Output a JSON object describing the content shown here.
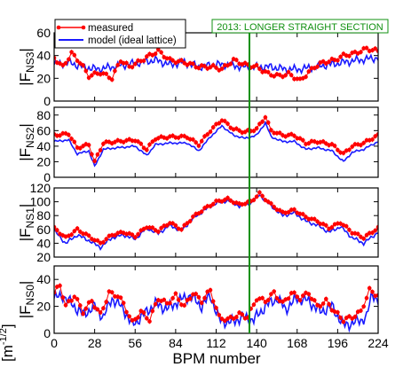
{
  "chart_data": {
    "type": "line",
    "xlabel": "BPM number",
    "xlim": [
      0,
      224
    ],
    "x_ticks": [
      "0",
      "28",
      "56",
      "84",
      "112",
      "140",
      "168",
      "196",
      "224"
    ],
    "x_tick_values": [
      0,
      28,
      56,
      84,
      112,
      140,
      168,
      196,
      224
    ],
    "y_unit_label": "[m⁻¹ᐟ²]",
    "y_unit_parts": {
      "prefix": "[m",
      "sup": "-1/2",
      "suffix": "]"
    },
    "legend": [
      {
        "name": "measured",
        "color": "#ff0000",
        "marker": "circle"
      },
      {
        "name": "model (ideal lattice)",
        "color": "#1a1aff",
        "marker": "none"
      }
    ],
    "annotation": {
      "text": "2013: LONGER STRAIGHT SECTION",
      "x": 135,
      "color": "#109010"
    },
    "colors": {
      "measured": "#ff0000",
      "model": "#1a1aff",
      "annotation": "#109010"
    },
    "panels": [
      {
        "ylabel": "|F",
        "ylabel_sub": "NS3",
        "ylim": [
          0,
          60
        ],
        "y_ticks": [
          0,
          20,
          40,
          60
        ],
        "measured_keypoints": [
          [
            0,
            38
          ],
          [
            6,
            30
          ],
          [
            12,
            42
          ],
          [
            18,
            34
          ],
          [
            24,
            22
          ],
          [
            32,
            25
          ],
          [
            40,
            20
          ],
          [
            46,
            36
          ],
          [
            52,
            30
          ],
          [
            58,
            34
          ],
          [
            66,
            40
          ],
          [
            72,
            44
          ],
          [
            80,
            36
          ],
          [
            90,
            34
          ],
          [
            100,
            30
          ],
          [
            110,
            30
          ],
          [
            116,
            28
          ],
          [
            124,
            36
          ],
          [
            132,
            32
          ],
          [
            140,
            30
          ],
          [
            148,
            24
          ],
          [
            156,
            22
          ],
          [
            162,
            24
          ],
          [
            170,
            18
          ],
          [
            180,
            30
          ],
          [
            186,
            34
          ],
          [
            194,
            36
          ],
          [
            200,
            40
          ],
          [
            208,
            42
          ],
          [
            216,
            46
          ],
          [
            224,
            44
          ]
        ],
        "model_keypoints": [
          [
            0,
            32
          ],
          [
            10,
            34
          ],
          [
            20,
            30
          ],
          [
            30,
            28
          ],
          [
            40,
            30
          ],
          [
            50,
            32
          ],
          [
            60,
            34
          ],
          [
            70,
            36
          ],
          [
            80,
            32
          ],
          [
            90,
            34
          ],
          [
            100,
            30
          ],
          [
            110,
            32
          ],
          [
            120,
            32
          ],
          [
            130,
            30
          ],
          [
            140,
            30
          ],
          [
            150,
            30
          ],
          [
            160,
            28
          ],
          [
            170,
            28
          ],
          [
            180,
            30
          ],
          [
            190,
            32
          ],
          [
            200,
            34
          ],
          [
            210,
            36
          ],
          [
            224,
            38
          ]
        ],
        "model_amplitude": 8
      },
      {
        "ylabel": "|F",
        "ylabel_sub": "NS2",
        "ylim": [
          0,
          90
        ],
        "y_ticks": [
          0,
          20,
          40,
          60,
          80
        ],
        "measured_keypoints": [
          [
            0,
            54
          ],
          [
            10,
            56
          ],
          [
            16,
            38
          ],
          [
            24,
            42
          ],
          [
            28,
            20
          ],
          [
            34,
            44
          ],
          [
            44,
            46
          ],
          [
            56,
            48
          ],
          [
            64,
            36
          ],
          [
            70,
            50
          ],
          [
            80,
            52
          ],
          [
            92,
            52
          ],
          [
            100,
            42
          ],
          [
            108,
            60
          ],
          [
            116,
            74
          ],
          [
            124,
            62
          ],
          [
            132,
            58
          ],
          [
            140,
            62
          ],
          [
            146,
            78
          ],
          [
            150,
            60
          ],
          [
            158,
            54
          ],
          [
            166,
            54
          ],
          [
            174,
            44
          ],
          [
            182,
            46
          ],
          [
            192,
            42
          ],
          [
            200,
            30
          ],
          [
            206,
            40
          ],
          [
            214,
            44
          ],
          [
            224,
            54
          ]
        ],
        "model_keypoints": [
          [
            0,
            46
          ],
          [
            10,
            48
          ],
          [
            16,
            30
          ],
          [
            24,
            34
          ],
          [
            28,
            14
          ],
          [
            34,
            36
          ],
          [
            44,
            38
          ],
          [
            56,
            40
          ],
          [
            64,
            28
          ],
          [
            70,
            42
          ],
          [
            80,
            44
          ],
          [
            92,
            44
          ],
          [
            100,
            34
          ],
          [
            108,
            52
          ],
          [
            116,
            66
          ],
          [
            124,
            54
          ],
          [
            132,
            50
          ],
          [
            140,
            54
          ],
          [
            146,
            70
          ],
          [
            150,
            52
          ],
          [
            158,
            46
          ],
          [
            166,
            46
          ],
          [
            174,
            36
          ],
          [
            182,
            38
          ],
          [
            192,
            34
          ],
          [
            200,
            20
          ],
          [
            206,
            32
          ],
          [
            214,
            36
          ],
          [
            224,
            46
          ]
        ],
        "model_amplitude": 3
      },
      {
        "ylabel": "|F",
        "ylabel_sub": "NS1",
        "ylim": [
          20,
          120
        ],
        "y_ticks": [
          20,
          40,
          60,
          80,
          100,
          120
        ],
        "measured_keypoints": [
          [
            0,
            62
          ],
          [
            8,
            48
          ],
          [
            16,
            60
          ],
          [
            24,
            50
          ],
          [
            32,
            40
          ],
          [
            40,
            52
          ],
          [
            48,
            56
          ],
          [
            56,
            50
          ],
          [
            64,
            64
          ],
          [
            72,
            58
          ],
          [
            80,
            70
          ],
          [
            88,
            60
          ],
          [
            96,
            78
          ],
          [
            104,
            90
          ],
          [
            112,
            100
          ],
          [
            120,
            104
          ],
          [
            128,
            96
          ],
          [
            136,
            100
          ],
          [
            142,
            112
          ],
          [
            150,
            96
          ],
          [
            158,
            84
          ],
          [
            166,
            88
          ],
          [
            174,
            78
          ],
          [
            182,
            72
          ],
          [
            190,
            62
          ],
          [
            198,
            70
          ],
          [
            206,
            56
          ],
          [
            214,
            48
          ],
          [
            224,
            62
          ]
        ],
        "model_keypoints": [
          [
            0,
            58
          ],
          [
            8,
            40
          ],
          [
            16,
            52
          ],
          [
            24,
            44
          ],
          [
            32,
            34
          ],
          [
            40,
            48
          ],
          [
            48,
            52
          ],
          [
            56,
            46
          ],
          [
            64,
            62
          ],
          [
            72,
            54
          ],
          [
            80,
            66
          ],
          [
            88,
            58
          ],
          [
            96,
            76
          ],
          [
            104,
            88
          ],
          [
            112,
            98
          ],
          [
            120,
            102
          ],
          [
            128,
            94
          ],
          [
            136,
            98
          ],
          [
            142,
            110
          ],
          [
            150,
            94
          ],
          [
            158,
            80
          ],
          [
            166,
            84
          ],
          [
            174,
            72
          ],
          [
            182,
            66
          ],
          [
            190,
            56
          ],
          [
            198,
            64
          ],
          [
            206,
            48
          ],
          [
            214,
            40
          ],
          [
            224,
            56
          ]
        ],
        "model_amplitude": 6
      },
      {
        "ylabel": "|F",
        "ylabel_sub": "NS0",
        "ylim": [
          0,
          50
        ],
        "y_ticks": [
          0,
          20,
          40
        ],
        "measured_keypoints": [
          [
            0,
            30
          ],
          [
            4,
            36
          ],
          [
            8,
            20
          ],
          [
            14,
            28
          ],
          [
            20,
            16
          ],
          [
            26,
            24
          ],
          [
            32,
            14
          ],
          [
            38,
            30
          ],
          [
            44,
            28
          ],
          [
            48,
            22
          ],
          [
            54,
            8
          ],
          [
            60,
            16
          ],
          [
            66,
            10
          ],
          [
            72,
            26
          ],
          [
            78,
            22
          ],
          [
            84,
            28
          ],
          [
            90,
            20
          ],
          [
            96,
            30
          ],
          [
            102,
            24
          ],
          [
            108,
            32
          ],
          [
            114,
            12
          ],
          [
            120,
            10
          ],
          [
            128,
            14
          ],
          [
            134,
            12
          ],
          [
            140,
            26
          ],
          [
            146,
            24
          ],
          [
            152,
            30
          ],
          [
            158,
            22
          ],
          [
            164,
            30
          ],
          [
            170,
            26
          ],
          [
            176,
            30
          ],
          [
            182,
            20
          ],
          [
            188,
            24
          ],
          [
            194,
            16
          ],
          [
            200,
            10
          ],
          [
            206,
            12
          ],
          [
            212,
            16
          ],
          [
            218,
            32
          ],
          [
            224,
            28
          ]
        ],
        "model_keypoints": [
          [
            0,
            26
          ],
          [
            6,
            28
          ],
          [
            12,
            22
          ],
          [
            20,
            14
          ],
          [
            28,
            20
          ],
          [
            34,
            12
          ],
          [
            40,
            26
          ],
          [
            48,
            18
          ],
          [
            54,
            6
          ],
          [
            62,
            14
          ],
          [
            70,
            22
          ],
          [
            78,
            18
          ],
          [
            86,
            24
          ],
          [
            94,
            28
          ],
          [
            102,
            20
          ],
          [
            108,
            28
          ],
          [
            114,
            10
          ],
          [
            122,
            8
          ],
          [
            130,
            12
          ],
          [
            138,
            10
          ],
          [
            146,
            20
          ],
          [
            154,
            26
          ],
          [
            160,
            18
          ],
          [
            168,
            26
          ],
          [
            176,
            24
          ],
          [
            184,
            16
          ],
          [
            192,
            20
          ],
          [
            200,
            6
          ],
          [
            208,
            8
          ],
          [
            216,
            12
          ],
          [
            220,
            30
          ],
          [
            224,
            24
          ]
        ],
        "model_amplitude": 10
      }
    ]
  }
}
